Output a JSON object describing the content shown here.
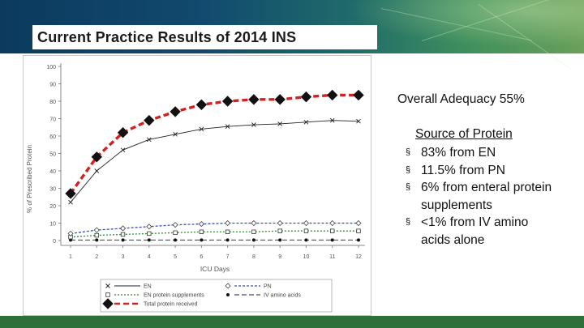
{
  "slide": {
    "title": "Current Practice Results of 2014 INS",
    "adequacy_text": "Overall Adequacy 55%",
    "source_heading": "Source of Protein",
    "source_items": [
      "83% from EN",
      "11.5% from PN",
      "6% from enteral protein supplements",
      "<1% from IV amino acids alone"
    ],
    "bullet_glyph": "§"
  },
  "colors": {
    "header_dark": "#0b3a5e",
    "footer_green": "#2f6f3a",
    "total_red": "#d42020",
    "en_black": "#222222",
    "pn_blue": "#3a4fb0",
    "supp_green": "#2e8b2e"
  },
  "chart_data": {
    "type": "line",
    "title": "",
    "xlabel": "ICU Days",
    "ylabel": "% of Prescribed Protein",
    "x": [
      1,
      2,
      3,
      4,
      5,
      6,
      7,
      8,
      9,
      10,
      11,
      12
    ],
    "ylim": [
      0,
      100
    ],
    "yticks": [
      0,
      10,
      20,
      30,
      40,
      50,
      60,
      70,
      80,
      90,
      100
    ],
    "series": [
      {
        "name": "EN",
        "marker": "×",
        "values": [
          22,
          40,
          52,
          58,
          61,
          64,
          65.5,
          66.5,
          67,
          68,
          69,
          68.5
        ]
      },
      {
        "name": "PN",
        "marker": "◇",
        "values": [
          4,
          6,
          7,
          8,
          9,
          9.5,
          10,
          10,
          10,
          10,
          10,
          10
        ]
      },
      {
        "name": "EN protein supplements",
        "marker": "□",
        "values": [
          2,
          3,
          3.5,
          4,
          4.5,
          5,
          5,
          5,
          5.5,
          5.5,
          5.5,
          5.5
        ]
      },
      {
        "name": "IV amino acids",
        "marker": "●",
        "values": [
          0.3,
          0.3,
          0.3,
          0.3,
          0.3,
          0.3,
          0.3,
          0.3,
          0.3,
          0.3,
          0.3,
          0.3
        ]
      },
      {
        "name": "Total protein received",
        "marker": "◆",
        "values": [
          27,
          48,
          62,
          69,
          74,
          78,
          80,
          81,
          81,
          82.5,
          83.5,
          83.5
        ]
      }
    ],
    "legend_position": "bottom",
    "grid": false
  }
}
